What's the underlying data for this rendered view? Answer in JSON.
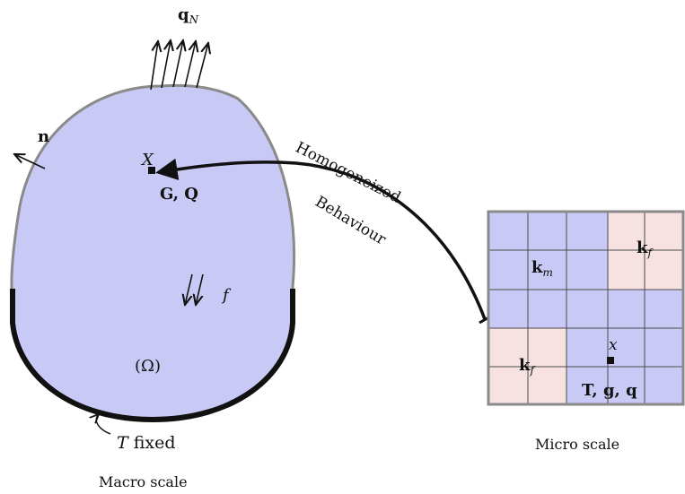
{
  "macro": {
    "flux_label": "q",
    "flux_sub": "N",
    "normal_label": "n",
    "point_label": "X",
    "point_fields": "G, Q",
    "force_label": "f",
    "domain_label": "(Ω)",
    "bc_var": "T",
    "bc_text": "fixed",
    "caption": "Macro scale"
  },
  "link": {
    "line1": "Homogeneized",
    "line2": "Behaviour"
  },
  "micro": {
    "km_label": "k",
    "km_sub": "m",
    "kf_label": "k",
    "kf_sub": "f",
    "kf_label2": "k",
    "kf_sub2": "f",
    "point_label": "x",
    "fields": "T, g, q",
    "caption": "Micro scale"
  },
  "colors": {
    "macro_fill": "#c9c9f5",
    "matrix_fill": "#c9c9f5",
    "fiber_fill": "#f8e1e1",
    "outline": "#8a8a8a",
    "ink": "#111111"
  }
}
